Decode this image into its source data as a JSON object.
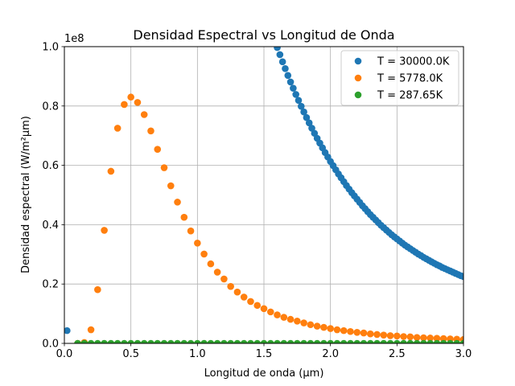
{
  "chart_data": {
    "type": "scatter",
    "title": "Densidad Espectral vs Longitud de Onda",
    "xlabel": "Longitud de onda (μm)",
    "ylabel": "Densidad espectral (W/m²μm)",
    "y_offset_label": "1e8",
    "xlim": [
      0.0,
      3.0
    ],
    "ylim": [
      0.0,
      1.0
    ],
    "x_ticks": [
      "0.0",
      "0.5",
      "1.0",
      "1.5",
      "2.0",
      "2.5",
      "3.0"
    ],
    "y_ticks": [
      "0.0",
      "0.2",
      "0.4",
      "0.6",
      "0.8",
      "1.0"
    ],
    "grid": true,
    "legend_position": "top-right",
    "series": [
      {
        "name": "T = 30000.0K",
        "color": "#1f77b4",
        "x": [
          0.02,
          1.6,
          1.62,
          1.64,
          1.66,
          1.68,
          1.7,
          1.72,
          1.74,
          1.76,
          1.78,
          1.8,
          1.82,
          1.84,
          1.86,
          1.88,
          1.9,
          1.92,
          1.94,
          1.96,
          1.98,
          2.0,
          2.02,
          2.04,
          2.06,
          2.08,
          2.1,
          2.12,
          2.14,
          2.16,
          2.18,
          2.2,
          2.22,
          2.24,
          2.26,
          2.28,
          2.3,
          2.32,
          2.34,
          2.36,
          2.38,
          2.4,
          2.42,
          2.44,
          2.46,
          2.48,
          2.5,
          2.52,
          2.54,
          2.56,
          2.58,
          2.6,
          2.62,
          2.64,
          2.66,
          2.68,
          2.7,
          2.72,
          2.74,
          2.76,
          2.78,
          2.8,
          2.82,
          2.84,
          2.86,
          2.88,
          2.9,
          2.92,
          2.94,
          2.96,
          2.98,
          3.0
        ],
        "y": [
          0.043,
          0.997,
          0.973,
          0.949,
          0.926,
          0.903,
          0.881,
          0.86,
          0.839,
          0.819,
          0.799,
          0.78,
          0.761,
          0.743,
          0.725,
          0.708,
          0.691,
          0.675,
          0.659,
          0.643,
          0.628,
          0.613,
          0.599,
          0.585,
          0.571,
          0.558,
          0.545,
          0.532,
          0.52,
          0.508,
          0.497,
          0.486,
          0.475,
          0.464,
          0.454,
          0.444,
          0.434,
          0.425,
          0.416,
          0.407,
          0.398,
          0.39,
          0.382,
          0.374,
          0.366,
          0.359,
          0.352,
          0.345,
          0.338,
          0.331,
          0.325,
          0.319,
          0.313,
          0.307,
          0.301,
          0.296,
          0.29,
          0.285,
          0.28,
          0.275,
          0.27,
          0.265,
          0.261,
          0.256,
          0.252,
          0.248,
          0.244,
          0.24,
          0.236,
          0.232,
          0.228,
          0.225
        ]
      },
      {
        "name": "T = 5778.0K",
        "color": "#ff7f0e",
        "x": [
          0.1,
          0.15,
          0.2,
          0.25,
          0.3,
          0.35,
          0.4,
          0.45,
          0.5,
          0.55,
          0.6,
          0.65,
          0.7,
          0.75,
          0.8,
          0.85,
          0.9,
          0.95,
          1.0,
          1.05,
          1.1,
          1.15,
          1.2,
          1.25,
          1.3,
          1.35,
          1.4,
          1.45,
          1.5,
          1.55,
          1.6,
          1.65,
          1.7,
          1.75,
          1.8,
          1.85,
          1.9,
          1.95,
          2.0,
          2.05,
          2.1,
          2.15,
          2.2,
          2.25,
          2.3,
          2.35,
          2.4,
          2.45,
          2.5,
          2.55,
          2.6,
          2.65,
          2.7,
          2.75,
          2.8,
          2.85,
          2.9,
          2.95,
          3.0
        ],
        "y": [
          0.0,
          0.003,
          0.046,
          0.181,
          0.381,
          0.58,
          0.725,
          0.805,
          0.83,
          0.812,
          0.771,
          0.716,
          0.654,
          0.592,
          0.531,
          0.476,
          0.425,
          0.379,
          0.338,
          0.301,
          0.268,
          0.24,
          0.217,
          0.192,
          0.173,
          0.156,
          0.141,
          0.128,
          0.117,
          0.106,
          0.096,
          0.088,
          0.081,
          0.075,
          0.069,
          0.063,
          0.058,
          0.054,
          0.05,
          0.046,
          0.043,
          0.04,
          0.037,
          0.035,
          0.032,
          0.03,
          0.028,
          0.026,
          0.025,
          0.023,
          0.022,
          0.02,
          0.019,
          0.018,
          0.017,
          0.016,
          0.015,
          0.014,
          0.013
        ]
      },
      {
        "name": "T = 287.65K",
        "color": "#2ca02c",
        "x": [
          0.1,
          0.15,
          0.2,
          0.25,
          0.3,
          0.35,
          0.4,
          0.45,
          0.5,
          0.55,
          0.6,
          0.65,
          0.7,
          0.75,
          0.8,
          0.85,
          0.9,
          0.95,
          1.0,
          1.05,
          1.1,
          1.15,
          1.2,
          1.25,
          1.3,
          1.35,
          1.4,
          1.45,
          1.5,
          1.55,
          1.6,
          1.65,
          1.7,
          1.75,
          1.8,
          1.85,
          1.9,
          1.95,
          2.0,
          2.05,
          2.1,
          2.15,
          2.2,
          2.25,
          2.3,
          2.35,
          2.4,
          2.45,
          2.5,
          2.55,
          2.6,
          2.65,
          2.7,
          2.75,
          2.8,
          2.85,
          2.9,
          2.95,
          3.0
        ],
        "y": [
          0.0,
          0.0,
          0.0,
          0.0,
          0.0,
          0.0,
          0.0,
          0.0,
          0.0,
          0.0,
          0.0,
          0.0,
          0.0,
          0.0,
          0.0,
          0.0,
          0.0,
          0.0,
          0.0,
          0.0,
          0.0,
          0.0,
          0.0,
          0.0,
          0.0,
          0.0,
          0.0,
          0.0,
          0.0,
          0.0,
          0.0,
          0.0,
          0.0,
          0.0,
          0.0,
          0.0,
          0.0,
          0.0,
          0.0,
          0.0,
          0.0,
          0.0,
          0.0,
          0.0,
          0.0,
          0.0,
          0.0,
          0.0,
          0.0,
          0.0,
          0.0,
          0.0,
          0.0,
          0.0,
          0.0,
          0.0,
          0.0,
          0.0,
          0.0
        ]
      }
    ]
  }
}
